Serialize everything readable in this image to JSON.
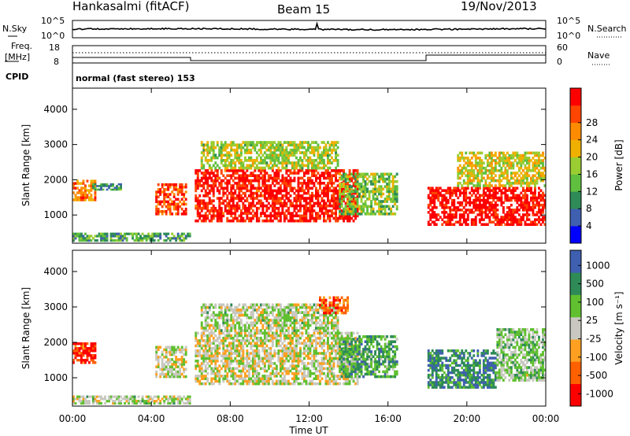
{
  "header": {
    "station": "Hankasalmi (fitACF)",
    "beam": "Beam 15",
    "date": "19/Nov/2013"
  },
  "top_panel": {
    "left_label": "N.Sky",
    "left_ticks": [
      "10^5",
      "10^0"
    ],
    "right_label": "N.Search",
    "right_ticks": [
      "10^5",
      "10^0"
    ]
  },
  "freq_panel": {
    "left_label_line1": "Freq.",
    "left_label_line2": "[MHz]",
    "left_ticks": [
      "18",
      "8"
    ],
    "right_label": "Nave",
    "right_ticks": [
      "60",
      "0"
    ]
  },
  "cpid": {
    "label": "CPID",
    "value": "normal (fast stereo) 153"
  },
  "colors": {
    "power": [
      "#0000ff",
      "#3f5fb0",
      "#2e8b57",
      "#5fbf3f",
      "#9acd32",
      "#f0b000",
      "#ff8c00",
      "#ff4500",
      "#ff0000"
    ],
    "velocity": [
      "#ff0000",
      "#ff6000",
      "#ffa020",
      "#c8c8c0",
      "#60c030",
      "#2e8b57",
      "#3f5fb0"
    ]
  },
  "chart_data": [
    {
      "type": "heatmap",
      "name": "power",
      "xlabel": "",
      "ylabel": "Slant Range [km]",
      "x_ticks": [
        "00:00",
        "04:00",
        "08:00",
        "12:00",
        "16:00",
        "20:00",
        "00:00"
      ],
      "y_ticks": [
        1000,
        2000,
        3000,
        4000
      ],
      "ylim": [
        200,
        4600
      ],
      "colorbar_label": "Power [dB]",
      "colorbar_ticks": [
        4,
        8,
        12,
        16,
        20,
        24,
        28
      ],
      "bands": [
        {
          "t0": 0.0,
          "t1": 1.2,
          "r0": 1400,
          "r1": 2000,
          "level": 0.75
        },
        {
          "t0": 1.0,
          "t1": 2.5,
          "r0": 1700,
          "r1": 1900,
          "level": 0.3
        },
        {
          "t0": 4.2,
          "t1": 5.8,
          "r0": 1000,
          "r1": 1900,
          "level": 0.85
        },
        {
          "t0": 6.2,
          "t1": 14.5,
          "r0": 800,
          "r1": 2300,
          "level": 0.95
        },
        {
          "t0": 6.5,
          "t1": 13.5,
          "r0": 2300,
          "r1": 3100,
          "level": 0.5
        },
        {
          "t0": 13.5,
          "t1": 16.5,
          "r0": 1000,
          "r1": 2200,
          "level": 0.45
        },
        {
          "t0": 18.0,
          "t1": 24.0,
          "r0": 700,
          "r1": 1800,
          "level": 0.98
        },
        {
          "t0": 19.5,
          "t1": 24.0,
          "r0": 1800,
          "r1": 2800,
          "level": 0.55
        },
        {
          "t0": 0.0,
          "t1": 6.0,
          "r0": 250,
          "r1": 500,
          "level": 0.35
        }
      ]
    },
    {
      "type": "heatmap",
      "name": "velocity",
      "xlabel": "Time UT",
      "ylabel": "Slant Range [km]",
      "x_ticks": [
        "00:00",
        "04:00",
        "08:00",
        "12:00",
        "16:00",
        "20:00",
        "00:00"
      ],
      "y_ticks": [
        1000,
        2000,
        3000,
        4000
      ],
      "ylim": [
        200,
        4600
      ],
      "colorbar_label": "Velocity [m s⁻¹]",
      "colorbar_ticks": [
        1000,
        500,
        100,
        25,
        -25,
        -100,
        -500,
        -1000
      ],
      "bands": [
        {
          "t0": 0.0,
          "t1": 1.2,
          "r0": 1400,
          "r1": 2000,
          "level": 0.15
        },
        {
          "t0": 4.2,
          "t1": 5.8,
          "r0": 1000,
          "r1": 1900,
          "level": 0.5
        },
        {
          "t0": 6.2,
          "t1": 14.5,
          "r0": 800,
          "r1": 2300,
          "level": 0.5
        },
        {
          "t0": 6.5,
          "t1": 13.5,
          "r0": 2300,
          "r1": 3100,
          "level": 0.55
        },
        {
          "t0": 13.5,
          "t1": 16.5,
          "r0": 1000,
          "r1": 2200,
          "level": 0.72
        },
        {
          "t0": 18.0,
          "t1": 21.5,
          "r0": 700,
          "r1": 1800,
          "level": 0.82
        },
        {
          "t0": 21.5,
          "t1": 24.0,
          "r0": 900,
          "r1": 2400,
          "level": 0.6
        },
        {
          "t0": 12.5,
          "t1": 14.0,
          "r0": 2800,
          "r1": 3300,
          "level": 0.2
        },
        {
          "t0": 0.0,
          "t1": 6.0,
          "r0": 250,
          "r1": 500,
          "level": 0.55
        }
      ]
    }
  ]
}
